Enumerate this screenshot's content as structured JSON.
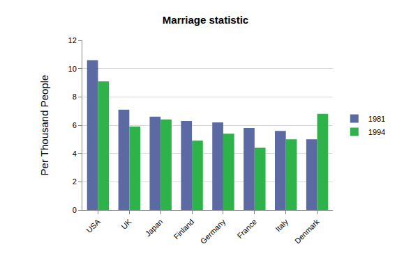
{
  "chart_data": {
    "type": "bar",
    "title": "Marriage statistic",
    "y_label": "Per Thousand People",
    "categories": [
      "USA",
      "UK",
      "Japan",
      "Finland",
      "Germany",
      "France",
      "Italy",
      "Denmark"
    ],
    "series": [
      {
        "name": "1981",
        "color": "#5c6aa3",
        "values": [
          10.6,
          7.1,
          6.6,
          6.3,
          6.2,
          5.8,
          5.6,
          5.0
        ]
      },
      {
        "name": "1994",
        "color": "#2eb34b",
        "values": [
          9.1,
          5.9,
          6.4,
          4.9,
          5.4,
          4.4,
          5.0,
          6.8
        ]
      }
    ],
    "ylim": [
      0,
      12
    ],
    "yticks": [
      0,
      2,
      4,
      6,
      8,
      10,
      12
    ],
    "grid": true,
    "legend": "right"
  }
}
